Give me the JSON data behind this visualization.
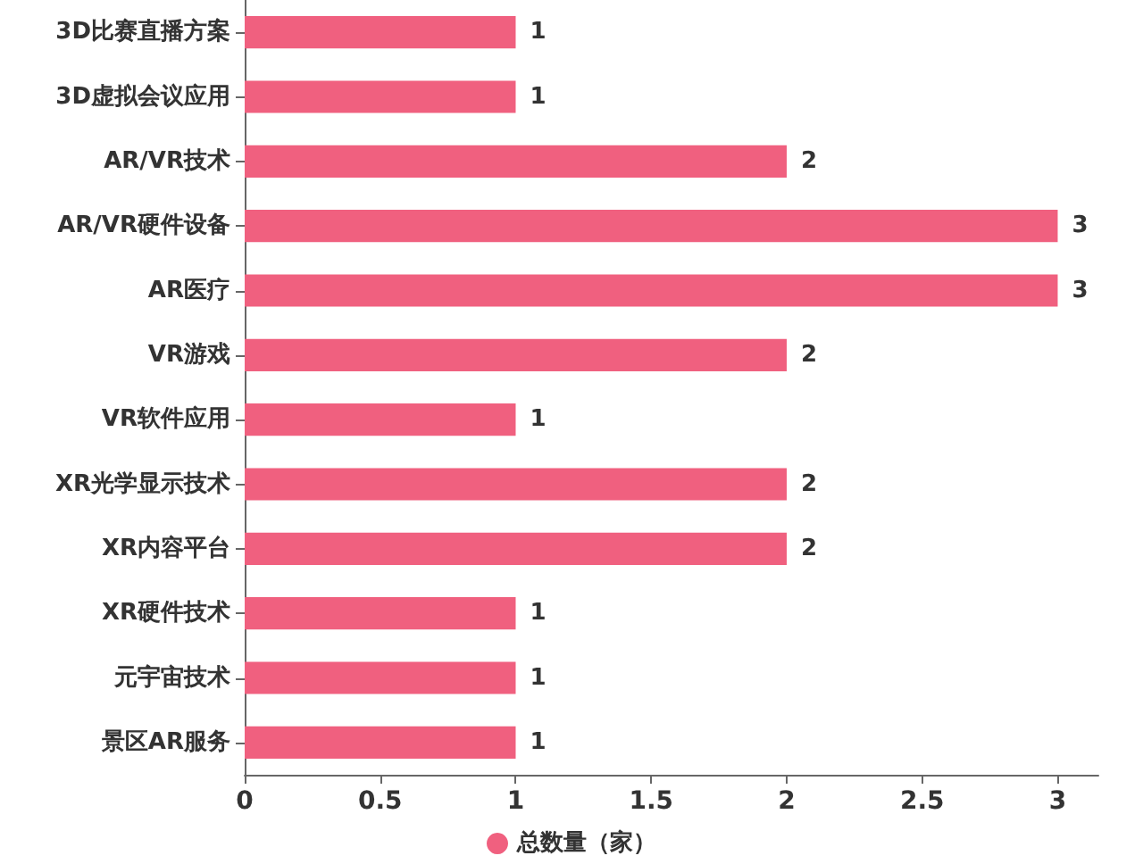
{
  "chart_data": {
    "type": "bar",
    "orientation": "horizontal",
    "categories": [
      "3D比赛直播方案",
      "3D虚拟会议应用",
      "AR/VR技术",
      "AR/VR硬件设备",
      "AR医疗",
      "VR游戏",
      "VR软件应用",
      "XR光学显示技术",
      "XR内容平台",
      "XR硬件技术",
      "元宇宙技术",
      "景区AR服务"
    ],
    "series": [
      {
        "name": "总数量（家）",
        "color": "#f0607f",
        "values": [
          1,
          1,
          2,
          3,
          3,
          2,
          1,
          2,
          2,
          1,
          1,
          1
        ]
      }
    ],
    "xlim": [
      0,
      3.15
    ],
    "xticks": [
      0,
      0.5,
      1,
      1.5,
      2,
      2.5,
      3
    ],
    "data_labels": true,
    "grid": false,
    "legend": "bottom"
  }
}
